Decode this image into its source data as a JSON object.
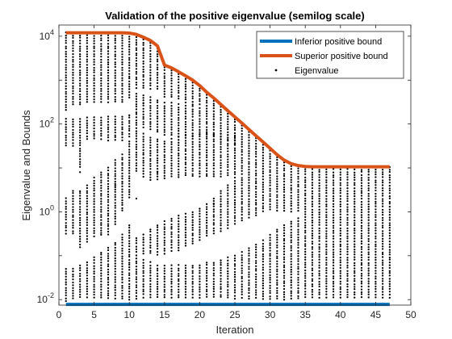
{
  "chart_data": {
    "type": "scatter",
    "title": "Validation of the positive eigenvalue (semilog scale)",
    "xlabel": "Iteration",
    "ylabel": "Eigenvalue and Bounds",
    "xlim": [
      0,
      50
    ],
    "ylim": [
      0.0075,
      18000
    ],
    "yscale": "log",
    "grid": false,
    "legend_placement": "top-right",
    "x_ticks": [
      "0",
      "5",
      "10",
      "15",
      "20",
      "25",
      "30",
      "35",
      "40",
      "45",
      "50"
    ],
    "y_ticks": [
      {
        "base": "10",
        "exp": "4",
        "value": 10000
      },
      {
        "base": "10",
        "exp": "2",
        "value": 100
      },
      {
        "base": "10",
        "exp": "0",
        "value": 1
      },
      {
        "base": "10",
        "exp": "-2",
        "value": 0.01
      }
    ],
    "series": [
      {
        "name": "Inferior positive bound",
        "kind": "line",
        "color": "#0072BD",
        "x": [
          1,
          47
        ],
        "y": [
          0.0078,
          0.0078
        ]
      },
      {
        "name": "Superior positive bound",
        "kind": "line",
        "color": "#D95319",
        "x": [
          1,
          2,
          3,
          4,
          5,
          6,
          7,
          8,
          9,
          10,
          11,
          12,
          13,
          14,
          15,
          16,
          17,
          18,
          19,
          20,
          21,
          22,
          23,
          24,
          25,
          26,
          27,
          28,
          29,
          30,
          31,
          32,
          33,
          34,
          35,
          36,
          37,
          38,
          39,
          40,
          41,
          42,
          43,
          44,
          45,
          46,
          47
        ],
        "y": [
          12000,
          12000,
          12000,
          12000,
          12000,
          12000,
          12000,
          12000,
          12000,
          11800,
          11000,
          9500,
          8000,
          6000,
          2200,
          1900,
          1550,
          1250,
          1000,
          750,
          530,
          390,
          280,
          200,
          145,
          105,
          75,
          54,
          39,
          28,
          20,
          15,
          12.5,
          11.3,
          10.8,
          10.6,
          10.6,
          10.6,
          10.6,
          10.6,
          10.6,
          10.6,
          10.6,
          10.6,
          10.6,
          10.6,
          10.6
        ]
      },
      {
        "name": "Eigenvalue",
        "kind": "points",
        "color": "#000000",
        "x": [
          1,
          47
        ],
        "note_values": "dense vertical columns of eigenvalues at each integer iteration from 1 to 47, spanning roughly 0.01 up to the superior bound"
      }
    ],
    "eigen_columns": [
      {
        "x": 1,
        "ranges": [
          [
            0.009,
            0.05
          ],
          [
            0.3,
            2
          ],
          [
            30,
            130
          ],
          [
            200,
            12000
          ]
        ]
      },
      {
        "x": 2,
        "ranges": [
          [
            0.01,
            0.05
          ],
          [
            0.3,
            3
          ],
          [
            30,
            130
          ],
          [
            250,
            12000
          ]
        ]
      },
      {
        "x": 3,
        "ranges": [
          [
            0.01,
            0.06
          ],
          [
            0.15,
            3
          ],
          [
            10,
            130
          ],
          [
            250,
            12000
          ]
        ]
      },
      {
        "x": 4,
        "ranges": [
          [
            0.01,
            0.07
          ],
          [
            0.2,
            4
          ],
          [
            40,
            140
          ],
          [
            300,
            12000
          ]
        ]
      },
      {
        "x": 5,
        "ranges": [
          [
            0.01,
            0.09
          ],
          [
            0.25,
            6
          ],
          [
            40,
            140
          ],
          [
            300,
            12000
          ]
        ]
      },
      {
        "x": 6,
        "ranges": [
          [
            0.01,
            0.12
          ],
          [
            0.3,
            8
          ],
          [
            40,
            140
          ],
          [
            300,
            12000
          ]
        ]
      },
      {
        "x": 7,
        "ranges": [
          [
            0.01,
            0.15
          ],
          [
            0.3,
            10
          ],
          [
            40,
            150
          ],
          [
            300,
            12000
          ]
        ]
      },
      {
        "x": 8,
        "ranges": [
          [
            0.01,
            0.2
          ],
          [
            0.5,
            15
          ],
          [
            40,
            150
          ],
          [
            300,
            12000
          ]
        ]
      },
      {
        "x": 9,
        "ranges": [
          [
            0.01,
            0.3
          ],
          [
            1,
            20
          ],
          [
            40,
            150
          ],
          [
            300,
            12000
          ]
        ]
      },
      {
        "x": 10,
        "ranges": [
          [
            0.01,
            0.5
          ],
          [
            2,
            40
          ],
          [
            50,
            160
          ],
          [
            350,
            11500
          ]
        ]
      },
      {
        "x": 11,
        "ranges": [
          [
            0.01,
            0.1
          ],
          [
            0.12,
            0.25
          ],
          [
            8,
            80
          ],
          [
            90,
            500
          ],
          [
            600,
            11000
          ]
        ]
      },
      {
        "x": 12,
        "ranges": [
          [
            0.01,
            0.08
          ],
          [
            0.1,
            0.3
          ],
          [
            6,
            60
          ],
          [
            80,
            450
          ],
          [
            600,
            9500
          ]
        ]
      },
      {
        "x": 13,
        "ranges": [
          [
            0.01,
            0.07
          ],
          [
            0.1,
            0.4
          ],
          [
            5,
            50
          ],
          [
            70,
            400
          ],
          [
            600,
            8000
          ]
        ]
      },
      {
        "x": 14,
        "ranges": [
          [
            0.01,
            0.06
          ],
          [
            0.1,
            0.5
          ],
          [
            5,
            45
          ],
          [
            60,
            350
          ],
          [
            600,
            6000
          ]
        ]
      },
      {
        "x": 15,
        "ranges": [
          [
            0.01,
            0.06
          ],
          [
            0.1,
            0.6
          ],
          [
            5,
            40
          ],
          [
            50,
            300
          ],
          [
            400,
            2200
          ]
        ]
      },
      {
        "x": 16,
        "ranges": [
          [
            0.01,
            0.06
          ],
          [
            0.12,
            0.7
          ],
          [
            6,
            45
          ],
          [
            50,
            300
          ],
          [
            400,
            1900
          ]
        ]
      },
      {
        "x": 17,
        "ranges": [
          [
            0.01,
            0.06
          ],
          [
            0.13,
            0.8
          ],
          [
            6,
            50
          ],
          [
            50,
            280
          ],
          [
            350,
            1550
          ]
        ]
      },
      {
        "x": 18,
        "ranges": [
          [
            0.01,
            0.06
          ],
          [
            0.15,
            0.9
          ],
          [
            6,
            55
          ],
          [
            50,
            260
          ],
          [
            300,
            1250
          ]
        ]
      },
      {
        "x": 19,
        "ranges": [
          [
            0.01,
            0.06
          ],
          [
            0.17,
            1.0
          ],
          [
            6,
            60
          ],
          [
            50,
            250
          ],
          [
            280,
            1000
          ]
        ]
      },
      {
        "x": 20,
        "ranges": [
          [
            0.01,
            0.06
          ],
          [
            0.2,
            1.2
          ],
          [
            6,
            60
          ],
          [
            50,
            230
          ],
          [
            250,
            750
          ]
        ]
      },
      {
        "x": 21,
        "ranges": [
          [
            0.01,
            0.07
          ],
          [
            0.25,
            1.5
          ],
          [
            6,
            60
          ],
          [
            50,
            530
          ]
        ]
      },
      {
        "x": 22,
        "ranges": [
          [
            0.01,
            0.07
          ],
          [
            0.3,
            2
          ],
          [
            6,
            60
          ],
          [
            50,
            390
          ]
        ]
      },
      {
        "x": 23,
        "ranges": [
          [
            0.01,
            0.08
          ],
          [
            0.35,
            3
          ],
          [
            6,
            60
          ],
          [
            45,
            280
          ]
        ]
      },
      {
        "x": 24,
        "ranges": [
          [
            0.01,
            0.09
          ],
          [
            0.4,
            4
          ],
          [
            6,
            55
          ],
          [
            40,
            200
          ]
        ]
      },
      {
        "x": 25,
        "ranges": [
          [
            0.01,
            0.1
          ],
          [
            0.5,
            5
          ],
          [
            6,
            50
          ],
          [
            35,
            145
          ]
        ]
      },
      {
        "x": 26,
        "ranges": [
          [
            0.01,
            0.12
          ],
          [
            0.6,
            6
          ],
          [
            7,
            105
          ]
        ]
      },
      {
        "x": 27,
        "ranges": [
          [
            0.01,
            0.15
          ],
          [
            0.7,
            75
          ]
        ]
      },
      {
        "x": 28,
        "ranges": [
          [
            0.01,
            0.18
          ],
          [
            0.8,
            54
          ]
        ]
      },
      {
        "x": 29,
        "ranges": [
          [
            0.01,
            0.22
          ],
          [
            0.9,
            39
          ]
        ]
      },
      {
        "x": 30,
        "ranges": [
          [
            0.01,
            0.3
          ],
          [
            1,
            28
          ]
        ]
      },
      {
        "x": 31,
        "ranges": [
          [
            0.01,
            0.4
          ],
          [
            1,
            20
          ]
        ]
      },
      {
        "x": 32,
        "ranges": [
          [
            0.01,
            0.5
          ],
          [
            1,
            15
          ]
        ]
      },
      {
        "x": 33,
        "ranges": [
          [
            0.01,
            0.6
          ],
          [
            1,
            12.5
          ]
        ]
      },
      {
        "x": 34,
        "ranges": [
          [
            0.01,
            0.7
          ],
          [
            1,
            11.3
          ]
        ]
      },
      {
        "x": 35,
        "ranges": [
          [
            0.01,
            10.8
          ]
        ]
      },
      {
        "x": 36,
        "ranges": [
          [
            0.01,
            10.6
          ]
        ]
      },
      {
        "x": 37,
        "ranges": [
          [
            0.01,
            10.6
          ]
        ]
      },
      {
        "x": 38,
        "ranges": [
          [
            0.01,
            10.6
          ]
        ]
      },
      {
        "x": 39,
        "ranges": [
          [
            0.01,
            10.6
          ]
        ]
      },
      {
        "x": 40,
        "ranges": [
          [
            0.01,
            10.6
          ]
        ]
      },
      {
        "x": 41,
        "ranges": [
          [
            0.01,
            10.6
          ]
        ]
      },
      {
        "x": 42,
        "ranges": [
          [
            0.01,
            10.6
          ]
        ]
      },
      {
        "x": 43,
        "ranges": [
          [
            0.01,
            10.6
          ]
        ]
      },
      {
        "x": 44,
        "ranges": [
          [
            0.01,
            10.6
          ]
        ]
      },
      {
        "x": 45,
        "ranges": [
          [
            0.01,
            10.6
          ]
        ]
      },
      {
        "x": 46,
        "ranges": [
          [
            0.01,
            10.6
          ]
        ]
      },
      {
        "x": 47,
        "ranges": [
          [
            0.01,
            10.6
          ]
        ]
      }
    ],
    "isolated_points": [
      {
        "x": 6,
        "y": 0.3
      },
      {
        "x": 11,
        "y": 2
      },
      {
        "x": 12,
        "y": 300
      },
      {
        "x": 14,
        "y": 8
      },
      {
        "x": 19,
        "y": 0.5
      },
      {
        "x": 22,
        "y": 1.5
      },
      {
        "x": 3,
        "y": 8
      },
      {
        "x": 8,
        "y": 4
      }
    ]
  }
}
